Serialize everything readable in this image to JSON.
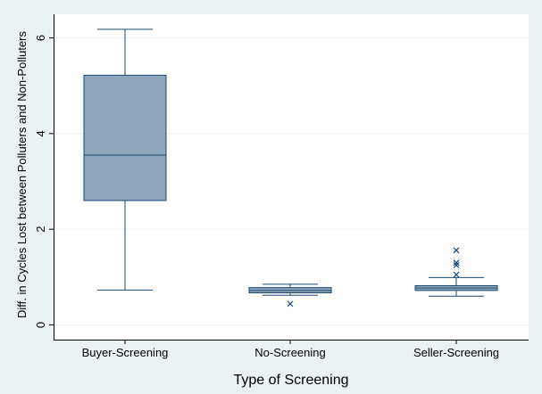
{
  "chart_data": {
    "type": "box",
    "xlabel": "Type of Screening",
    "ylabel": "Diff. in Cycles Lost between Polluters and Non-Polluters",
    "ylim": [
      0,
      6.4
    ],
    "yticks": [
      0,
      2,
      4,
      6
    ],
    "grid": "horizontal",
    "categories": [
      "Buyer-Screening",
      "No-Screening",
      "Seller-Screening"
    ],
    "boxes": [
      {
        "category": "Buyer-Screening",
        "whisker_low": 0.73,
        "q1": 2.6,
        "median": 3.55,
        "q3": 5.22,
        "whisker_high": 6.18,
        "outliers": []
      },
      {
        "category": "No-Screening",
        "whisker_low": 0.62,
        "q1": 0.67,
        "median": 0.72,
        "q3": 0.78,
        "whisker_high": 0.85,
        "outliers": [
          0.44
        ]
      },
      {
        "category": "Seller-Screening",
        "whisker_low": 0.6,
        "q1": 0.72,
        "median": 0.77,
        "q3": 0.82,
        "whisker_high": 0.99,
        "outliers": [
          1.05,
          1.25,
          1.3,
          1.56
        ]
      }
    ],
    "colors": {
      "background": "#eaf2f3",
      "plot_area": "#ffffff",
      "box_fill": "#8ea6bb",
      "box_stroke": "#1a476f",
      "gridline": "#eaf2f3",
      "axis": "#000000"
    }
  }
}
